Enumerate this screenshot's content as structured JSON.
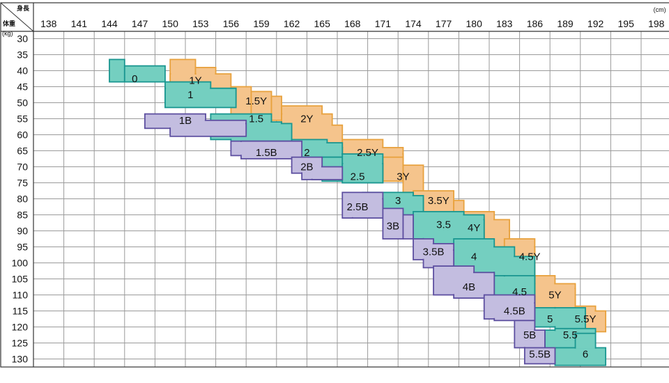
{
  "chart_data": {
    "type": "heatmap",
    "header_height_label": "身長",
    "header_weight_label": "体重",
    "x_unit": "(cm)",
    "y_unit": "(kg)",
    "x_ticks": [
      138,
      141,
      144,
      147,
      150,
      153,
      156,
      159,
      162,
      165,
      168,
      171,
      174,
      177,
      180,
      183,
      186,
      189,
      192,
      195,
      198
    ],
    "y_ticks": [
      30,
      35,
      40,
      45,
      50,
      55,
      60,
      65,
      70,
      75,
      80,
      85,
      90,
      95,
      100,
      105,
      110,
      115,
      120,
      125,
      130
    ],
    "colors": {
      "Y": "#f5c48c",
      "Y_edge": "#e8a23e",
      "T": "#74cfc0",
      "T_edge": "#1a9690",
      "B": "#c3bde0",
      "B_edge": "#5d4fa0"
    },
    "zones": [
      {
        "label": "0",
        "family": "T",
        "label_at": [
          146.5,
          42.5
        ],
        "cells": [
          [
            144,
            145.5,
            36.5,
            43.5
          ],
          [
            145.5,
            149.5,
            38.5,
            43.5
          ]
        ]
      },
      {
        "label": "1Y",
        "family": "Y",
        "label_at": [
          152.5,
          43
        ],
        "cells": [
          [
            150,
            152.5,
            36.5,
            43.5
          ],
          [
            152.5,
            154.5,
            39,
            43.5
          ],
          [
            150,
            156,
            41,
            45.5
          ]
        ]
      },
      {
        "label": "1",
        "family": "T",
        "label_at": [
          152,
          47.5
        ],
        "cells": [
          [
            149.5,
            154,
            43.5,
            50
          ],
          [
            154,
            156.5,
            45.5,
            50
          ],
          [
            149.5,
            156.5,
            45.5,
            51.5
          ]
        ]
      },
      {
        "label": "1B",
        "family": "B",
        "label_at": [
          151.5,
          55.5
        ],
        "cells": [
          [
            147.5,
            153.5,
            53.5,
            58
          ],
          [
            150,
            157.5,
            55.5,
            59.5
          ],
          [
            150,
            157.5,
            56.5,
            60.5
          ]
        ]
      },
      {
        "label": "1.5Y",
        "family": "Y",
        "label_at": [
          158.5,
          49.5
        ],
        "cells": [
          [
            156,
            158,
            45,
            54
          ],
          [
            158,
            160,
            46.5,
            55.5
          ],
          [
            160,
            161,
            48,
            55.5
          ]
        ]
      },
      {
        "label": "1.5",
        "family": "T",
        "label_at": [
          158.5,
          55
        ],
        "cells": [
          [
            154,
            160,
            53.5,
            61.5
          ],
          [
            156,
            161,
            56,
            63
          ],
          [
            160,
            162,
            56.5,
            63
          ]
        ]
      },
      {
        "label": "1.5B",
        "family": "B",
        "label_at": [
          159.5,
          65.5
        ],
        "cells": [
          [
            156,
            162,
            62,
            66.5
          ],
          [
            157,
            163,
            62,
            67.5
          ]
        ]
      },
      {
        "label": "2Y",
        "family": "Y",
        "label_at": [
          163.5,
          55
        ],
        "cells": [
          [
            161,
            165,
            51,
            62
          ],
          [
            161,
            166,
            53.5,
            63
          ],
          [
            165,
            167,
            57,
            63
          ]
        ]
      },
      {
        "label": "2",
        "family": "T",
        "label_at": [
          163.5,
          65.5
        ],
        "cells": [
          [
            162,
            165.5,
            61.5,
            67
          ],
          [
            162,
            167,
            64,
            67
          ],
          [
            163,
            167,
            62.5,
            66
          ]
        ]
      },
      {
        "label": "2B",
        "family": "B",
        "label_at": [
          163.5,
          70
        ],
        "cells": [
          [
            162,
            165,
            67,
            72
          ],
          [
            163,
            165,
            70,
            74
          ],
          [
            164,
            167,
            70,
            74
          ]
        ]
      },
      {
        "label": "2.5Y",
        "family": "Y",
        "label_at": [
          169.5,
          65.5
        ],
        "cells": [
          [
            167,
            171,
            61.5,
            65
          ],
          [
            167,
            173,
            64,
            68
          ],
          [
            168,
            173,
            66,
            69
          ]
        ]
      },
      {
        "label": "2.5",
        "family": "T",
        "label_at": [
          168.5,
          73
        ],
        "cells": [
          [
            165,
            167,
            67,
            74.5
          ],
          [
            167,
            171,
            66,
            75
          ],
          [
            167,
            171,
            69,
            75
          ]
        ]
      },
      {
        "label": "2.5B",
        "family": "B",
        "label_at": [
          168.5,
          82.5
        ],
        "cells": [
          [
            167,
            171,
            78,
            86
          ],
          [
            168,
            171,
            80,
            86
          ]
        ]
      },
      {
        "label": "3Y",
        "family": "Y",
        "label_at": [
          173,
          73
        ],
        "cells": [
          [
            171,
            173,
            67,
            74.5
          ],
          [
            173,
            175,
            69.5,
            78
          ]
        ]
      },
      {
        "label": "3",
        "family": "T",
        "label_at": [
          172.5,
          80.5
        ],
        "cells": [
          [
            169,
            174,
            78,
            82
          ],
          [
            171,
            175,
            80,
            85
          ],
          [
            173,
            175,
            79,
            87
          ]
        ]
      },
      {
        "label": "3B",
        "family": "B",
        "label_at": [
          172,
          88.5
        ],
        "cells": [
          [
            171,
            173,
            83,
            92.5
          ],
          [
            173,
            174,
            85,
            92.5
          ]
        ]
      },
      {
        "label": "3.5Y",
        "family": "Y",
        "label_at": [
          176.5,
          80.5
        ],
        "cells": [
          [
            174,
            178,
            77.5,
            86.5
          ],
          [
            178,
            179,
            80.5,
            86.5
          ]
        ]
      },
      {
        "label": "3.5",
        "family": "T",
        "label_at": [
          177,
          88
        ],
        "cells": [
          [
            174,
            179,
            84,
            92.5
          ],
          [
            175,
            181,
            85,
            95
          ],
          [
            179,
            181,
            86.5,
            95
          ]
        ]
      },
      {
        "label": "3.5B",
        "family": "B",
        "label_at": [
          176,
          96.5
        ],
        "cells": [
          [
            174,
            176,
            92.5,
            99
          ],
          [
            175,
            178,
            94,
            101.5
          ],
          [
            176,
            178,
            96,
            101
          ]
        ]
      },
      {
        "label": "4Y",
        "family": "Y",
        "label_at": [
          180,
          89
        ],
        "cells": [
          [
            179,
            182,
            84,
            90.5
          ],
          [
            181,
            183.5,
            86.5,
            94
          ],
          [
            182,
            183.5,
            90,
            95
          ]
        ]
      },
      {
        "label": "4",
        "family": "T",
        "label_at": [
          180,
          98
        ],
        "cells": [
          [
            178,
            182,
            92.5,
            103
          ],
          [
            180,
            184,
            95,
            103
          ],
          [
            182,
            186,
            98,
            104.5
          ]
        ]
      },
      {
        "label": "4B",
        "family": "B",
        "label_at": [
          179.5,
          107.5
        ],
        "cells": [
          [
            176,
            180,
            101,
            110
          ],
          [
            178,
            182,
            103,
            111
          ]
        ]
      },
      {
        "label": "4.5Y",
        "family": "Y",
        "label_at": [
          185.5,
          98
        ],
        "cells": [
          [
            183,
            186,
            92.5,
            105
          ],
          [
            185,
            186,
            95,
            105
          ]
        ]
      },
      {
        "label": "4.5",
        "family": "T",
        "label_at": [
          184.5,
          109
        ],
        "cells": [
          [
            182,
            186,
            104,
            115
          ],
          [
            183,
            186,
            104,
            116.5
          ]
        ]
      },
      {
        "label": "4.5B",
        "family": "B",
        "label_at": [
          184,
          115
        ],
        "cells": [
          [
            181,
            186,
            110,
            117.5
          ],
          [
            182,
            186,
            112.5,
            118
          ]
        ]
      },
      {
        "label": "5Y",
        "family": "Y",
        "label_at": [
          188,
          110
        ],
        "cells": [
          [
            186,
            188,
            104,
            110
          ],
          [
            186,
            190,
            106.5,
            114
          ],
          [
            188,
            190,
            108,
            115
          ]
        ]
      },
      {
        "label": "5",
        "family": "T",
        "label_at": [
          187.5,
          117.5
        ],
        "cells": [
          [
            186,
            190,
            114,
            120
          ],
          [
            188,
            191,
            114,
            121
          ]
        ]
      },
      {
        "label": "5B",
        "family": "B",
        "label_at": [
          185.5,
          122.5
        ],
        "cells": [
          [
            184,
            186,
            118,
            126.5
          ],
          [
            185,
            187,
            121,
            126.5
          ]
        ]
      },
      {
        "label": "5.5Y",
        "family": "Y",
        "label_at": [
          191,
          117.5
        ],
        "cells": [
          [
            190,
            192,
            113.5,
            121.5
          ],
          [
            191,
            193,
            115,
            121.5
          ]
        ]
      },
      {
        "label": "5.5",
        "family": "T",
        "label_at": [
          189.5,
          122.5
        ],
        "cells": [
          [
            187,
            190,
            121,
            127
          ],
          [
            188,
            192,
            120.5,
            127
          ]
        ]
      },
      {
        "label": "5.5B",
        "family": "B",
        "label_at": [
          186.5,
          128.5
        ],
        "cells": [
          [
            185,
            188,
            126.5,
            131.5
          ]
        ]
      },
      {
        "label": "6",
        "family": "T",
        "label_at": [
          191,
          128.5
        ],
        "cells": [
          [
            188,
            193,
            126.5,
            132
          ],
          [
            190,
            192,
            122,
            127
          ]
        ]
      }
    ]
  }
}
